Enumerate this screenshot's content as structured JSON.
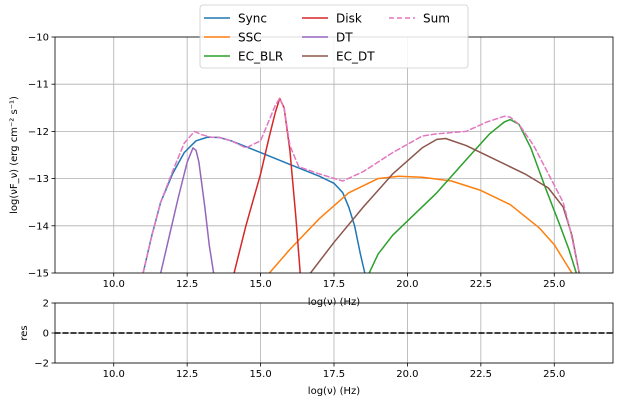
{
  "chart_data": [
    {
      "type": "line",
      "role": "main",
      "xlabel": "log(ν)  (Hz)",
      "ylabel": "log(νF_ν)  (erg cm⁻²  s⁻¹)",
      "xlim": [
        8.0,
        27.0
      ],
      "ylim": [
        -15,
        -10
      ],
      "xticks": [
        "10.0",
        "12.5",
        "15.0",
        "17.5",
        "20.0",
        "22.5",
        "25.0"
      ],
      "yticks": [
        "−10",
        "−11",
        "−12",
        "−13",
        "−14",
        "−15"
      ],
      "grid": true,
      "legend_placement": "top-center",
      "series": [
        {
          "name": "Sync",
          "color": "#1f77b4",
          "dash": false,
          "x": [
            11.0,
            11.3,
            11.6,
            12.0,
            12.4,
            12.8,
            13.2,
            13.6,
            14.0,
            15.0,
            16.0,
            17.0,
            17.5,
            17.8,
            18.0,
            18.2,
            18.4,
            18.55
          ],
          "y": [
            -15.0,
            -14.2,
            -13.5,
            -12.9,
            -12.45,
            -12.2,
            -12.12,
            -12.13,
            -12.2,
            -12.45,
            -12.7,
            -12.95,
            -13.1,
            -13.3,
            -13.6,
            -14.0,
            -14.6,
            -15.0
          ]
        },
        {
          "name": "SSC",
          "color": "#ff7f0e",
          "dash": false,
          "x": [
            15.3,
            16.0,
            17.0,
            18.0,
            19.0,
            19.7,
            20.5,
            21.5,
            22.5,
            23.5,
            24.5,
            25.0,
            25.4,
            25.6
          ],
          "y": [
            -15.0,
            -14.5,
            -13.85,
            -13.3,
            -13.0,
            -12.95,
            -12.97,
            -13.05,
            -13.25,
            -13.55,
            -14.05,
            -14.4,
            -14.8,
            -15.0
          ]
        },
        {
          "name": "EC_BLR",
          "color": "#2ca02c",
          "dash": false,
          "x": [
            18.7,
            19.0,
            19.5,
            20.0,
            21.0,
            22.0,
            22.8,
            23.3,
            23.5,
            23.8,
            24.2,
            24.7,
            25.2,
            25.5,
            25.75
          ],
          "y": [
            -15.0,
            -14.6,
            -14.2,
            -13.9,
            -13.3,
            -12.6,
            -12.05,
            -11.8,
            -11.75,
            -11.85,
            -12.35,
            -13.2,
            -14.0,
            -14.5,
            -15.0
          ]
        },
        {
          "name": "Disk",
          "color": "#d62728",
          "dash": false,
          "x": [
            14.1,
            14.5,
            15.0,
            15.3,
            15.5,
            15.65,
            15.8,
            16.0,
            16.2,
            16.35
          ],
          "y": [
            -15.0,
            -14.0,
            -12.9,
            -12.1,
            -11.6,
            -11.3,
            -11.5,
            -12.4,
            -13.8,
            -15.0
          ]
        },
        {
          "name": "DT",
          "color": "#9467bd",
          "dash": false,
          "x": [
            11.6,
            11.9,
            12.2,
            12.5,
            12.7,
            12.8,
            12.9,
            13.1,
            13.25,
            13.4
          ],
          "y": [
            -15.0,
            -14.2,
            -13.4,
            -12.65,
            -12.35,
            -12.4,
            -12.65,
            -13.6,
            -14.4,
            -15.0
          ]
        },
        {
          "name": "EC_DT",
          "color": "#8c564b",
          "dash": false,
          "x": [
            16.7,
            17.5,
            18.5,
            19.5,
            20.5,
            21.0,
            21.3,
            22.0,
            23.0,
            24.0,
            24.8,
            25.3,
            25.6,
            25.85
          ],
          "y": [
            -15.0,
            -14.35,
            -13.6,
            -12.9,
            -12.35,
            -12.17,
            -12.15,
            -12.3,
            -12.6,
            -12.9,
            -13.2,
            -13.6,
            -14.2,
            -15.0
          ]
        },
        {
          "name": "Sum",
          "color": "#e377c2",
          "dash": true,
          "x": [
            11.0,
            11.3,
            11.6,
            12.0,
            12.4,
            12.75,
            13.0,
            13.3,
            13.6,
            14.0,
            14.5,
            15.0,
            15.3,
            15.5,
            15.65,
            15.8,
            16.0,
            16.3,
            17.0,
            17.8,
            18.5,
            19.5,
            20.5,
            21.0,
            22.0,
            22.7,
            23.3,
            23.5,
            23.8,
            24.3,
            24.8,
            25.3,
            25.55,
            25.85
          ],
          "y": [
            -15.0,
            -14.2,
            -13.5,
            -12.85,
            -12.25,
            -12.0,
            -12.07,
            -12.12,
            -12.13,
            -12.2,
            -12.35,
            -12.2,
            -11.75,
            -11.45,
            -11.3,
            -11.5,
            -12.3,
            -12.75,
            -12.9,
            -13.05,
            -12.85,
            -12.45,
            -12.1,
            -12.05,
            -12.0,
            -11.8,
            -11.68,
            -11.7,
            -11.85,
            -12.3,
            -12.9,
            -13.5,
            -14.1,
            -15.0
          ]
        }
      ]
    },
    {
      "type": "line",
      "role": "residuals",
      "xlabel": "log(ν)  (Hz)",
      "ylabel": "res",
      "xlim": [
        8.0,
        27.0
      ],
      "ylim": [
        -2,
        2
      ],
      "xticks": [
        "10.0",
        "12.5",
        "15.0",
        "17.5",
        "20.0",
        "22.5",
        "25.0"
      ],
      "yticks": [
        "2",
        "0",
        "−2"
      ],
      "grid": true,
      "series": [
        {
          "color": "#000000",
          "dash": true,
          "x": [
            8.0,
            27.0
          ],
          "y": [
            0,
            0
          ]
        }
      ]
    }
  ]
}
